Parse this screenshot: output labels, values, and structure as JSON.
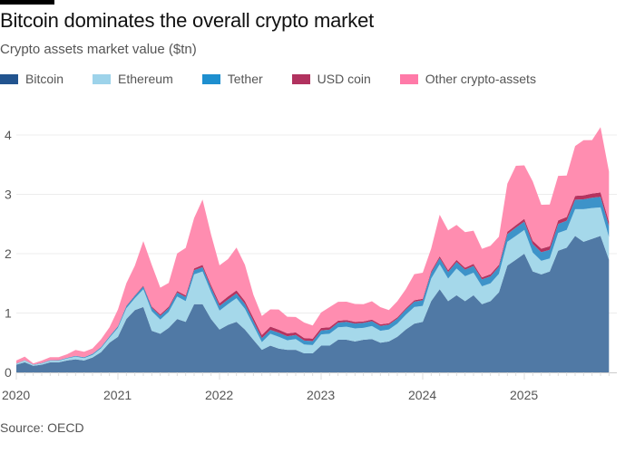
{
  "header": {
    "title": "Bitcoin dominates the overall crypto market",
    "subtitle": "Crypto assets market value ($tn)"
  },
  "source": "Source: OECD",
  "chart_data": {
    "type": "area",
    "stacked": true,
    "title": "Bitcoin dominates the overall crypto market",
    "ylabel": "Crypto assets market value ($tn)",
    "ylim": [
      0,
      4.4
    ],
    "yticks": [
      "0",
      "1",
      "2",
      "3",
      "4"
    ],
    "xticks": [
      "2020",
      "2021",
      "2022",
      "2023",
      "2024",
      "2025"
    ],
    "x_start": "2020-01",
    "x_step": "month",
    "legend_position": "top-left",
    "series": [
      {
        "name": "Bitcoin",
        "color": "#5079a5",
        "legend_color": "#22548f",
        "values": [
          0.13,
          0.17,
          0.11,
          0.13,
          0.17,
          0.17,
          0.2,
          0.22,
          0.2,
          0.25,
          0.34,
          0.5,
          0.6,
          0.9,
          1.05,
          1.1,
          0.7,
          0.65,
          0.75,
          0.9,
          0.85,
          1.15,
          1.15,
          0.9,
          0.72,
          0.8,
          0.85,
          0.72,
          0.55,
          0.38,
          0.45,
          0.4,
          0.38,
          0.38,
          0.32,
          0.32,
          0.45,
          0.45,
          0.55,
          0.55,
          0.52,
          0.55,
          0.56,
          0.5,
          0.52,
          0.6,
          0.72,
          0.82,
          0.85,
          1.2,
          1.4,
          1.2,
          1.3,
          1.2,
          1.3,
          1.15,
          1.2,
          1.35,
          1.8,
          1.9,
          2.0,
          1.7,
          1.65,
          1.7,
          2.05,
          2.1,
          2.3,
          2.2,
          2.25,
          2.3,
          1.9
        ]
      },
      {
        "name": "Ethereum",
        "color": "#a5d8ea",
        "legend_color": "#9dd3ea",
        "values": [
          0.015,
          0.03,
          0.015,
          0.02,
          0.025,
          0.025,
          0.035,
          0.045,
          0.04,
          0.045,
          0.065,
          0.085,
          0.15,
          0.18,
          0.2,
          0.3,
          0.33,
          0.24,
          0.27,
          0.38,
          0.35,
          0.5,
          0.55,
          0.45,
          0.32,
          0.35,
          0.4,
          0.35,
          0.24,
          0.13,
          0.2,
          0.2,
          0.16,
          0.18,
          0.15,
          0.14,
          0.19,
          0.2,
          0.21,
          0.22,
          0.22,
          0.2,
          0.22,
          0.2,
          0.2,
          0.22,
          0.25,
          0.28,
          0.27,
          0.38,
          0.42,
          0.38,
          0.45,
          0.42,
          0.38,
          0.3,
          0.3,
          0.31,
          0.4,
          0.4,
          0.4,
          0.32,
          0.23,
          0.22,
          0.3,
          0.3,
          0.45,
          0.55,
          0.52,
          0.48,
          0.38
        ]
      },
      {
        "name": "Tether",
        "color": "#3d93c9",
        "legend_color": "#1e8fcf",
        "values": [
          0.005,
          0.005,
          0.006,
          0.007,
          0.009,
          0.01,
          0.01,
          0.012,
          0.014,
          0.016,
          0.018,
          0.02,
          0.025,
          0.035,
          0.04,
          0.048,
          0.06,
          0.062,
          0.062,
          0.065,
          0.068,
          0.07,
          0.073,
          0.078,
          0.078,
          0.078,
          0.08,
          0.082,
          0.075,
          0.066,
          0.066,
          0.067,
          0.068,
          0.069,
          0.066,
          0.066,
          0.067,
          0.069,
          0.078,
          0.081,
          0.083,
          0.083,
          0.083,
          0.083,
          0.083,
          0.084,
          0.087,
          0.091,
          0.095,
          0.098,
          0.104,
          0.11,
          0.111,
          0.112,
          0.114,
          0.117,
          0.119,
          0.12,
          0.13,
          0.138,
          0.14,
          0.142,
          0.144,
          0.146,
          0.151,
          0.156,
          0.16,
          0.166,
          0.172,
          0.178,
          0.182
        ]
      },
      {
        "name": "USD coin",
        "color": "#b5335f",
        "legend_color": "#b1325f",
        "values": [
          0.0005,
          0.0006,
          0.0007,
          0.0008,
          0.001,
          0.001,
          0.001,
          0.0012,
          0.002,
          0.0025,
          0.003,
          0.004,
          0.005,
          0.008,
          0.01,
          0.014,
          0.02,
          0.025,
          0.027,
          0.028,
          0.03,
          0.032,
          0.038,
          0.042,
          0.045,
          0.05,
          0.052,
          0.05,
          0.054,
          0.055,
          0.055,
          0.052,
          0.049,
          0.044,
          0.043,
          0.044,
          0.042,
          0.04,
          0.032,
          0.03,
          0.029,
          0.027,
          0.026,
          0.026,
          0.026,
          0.025,
          0.024,
          0.024,
          0.025,
          0.028,
          0.032,
          0.033,
          0.033,
          0.032,
          0.034,
          0.035,
          0.036,
          0.035,
          0.039,
          0.043,
          0.048,
          0.056,
          0.06,
          0.061,
          0.061,
          0.062,
          0.064,
          0.067,
          0.072,
          0.074,
          0.075
        ]
      },
      {
        "name": "Other crypto-assets",
        "color": "#ff8db0",
        "legend_color": "#ff7aa8",
        "values": [
          0.05,
          0.06,
          0.02,
          0.04,
          0.05,
          0.05,
          0.06,
          0.1,
          0.09,
          0.09,
          0.13,
          0.15,
          0.28,
          0.38,
          0.5,
          0.75,
          0.7,
          0.45,
          0.4,
          0.63,
          0.8,
          0.85,
          1.1,
          0.85,
          0.64,
          0.63,
          0.72,
          0.61,
          0.39,
          0.32,
          0.29,
          0.34,
          0.28,
          0.26,
          0.26,
          0.22,
          0.26,
          0.34,
          0.32,
          0.31,
          0.3,
          0.29,
          0.31,
          0.29,
          0.22,
          0.27,
          0.32,
          0.44,
          0.44,
          0.38,
          0.7,
          0.67,
          0.59,
          0.6,
          0.56,
          0.48,
          0.48,
          0.47,
          0.81,
          1.0,
          0.9,
          1.0,
          0.74,
          0.7,
          0.75,
          0.7,
          0.84,
          0.93,
          0.9,
          1.1,
          0.85
        ]
      }
    ]
  }
}
